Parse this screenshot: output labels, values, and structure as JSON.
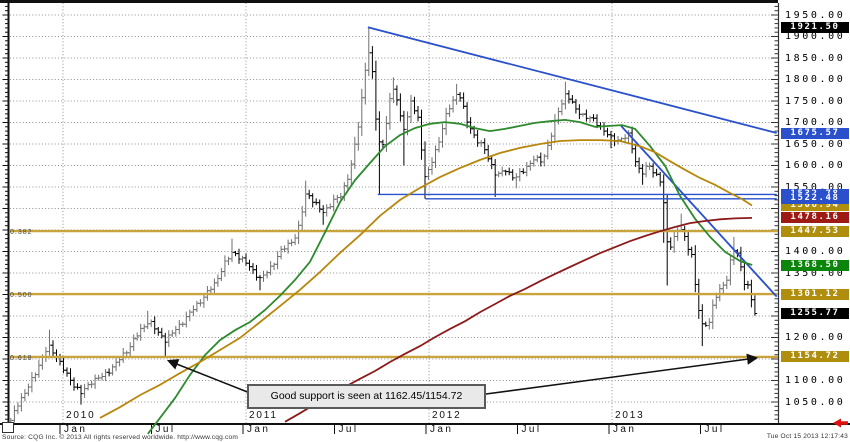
{
  "source_line": "Source: CQG Inc. © 2013 All rights reserved worldwide. http://www.cqg.com",
  "timestamp": "Tue Oct 15 2013 12:17:43",
  "annotation": {
    "text": "Good support is seen at 1162.45/1154.72"
  },
  "colors": {
    "blue": "#2a50cc",
    "gold": "#ae8e0c",
    "dark_red": "#9e1a15",
    "green": "#0c850c",
    "black": "#000000",
    "fib_line": "#c9a43c",
    "ma_green": "#2d8a2d",
    "ma_orange": "#b8860b",
    "ma_maroon": "#8c1a1a",
    "bar_up": "#6f6f6f",
    "bar_down": "#000000",
    "grid": "#909090",
    "red_arrow": "#e01010",
    "arrow_black": "#111111"
  },
  "chart_data": {
    "type": "ohlc-bar",
    "timeframe": "weekly",
    "ylim": [
      999,
      1978
    ],
    "xlim": [
      2009.7,
      2013.9
    ],
    "grid": true,
    "y_axis": {
      "ticks": [
        "1950.00",
        "1900.00",
        "1850.00",
        "1800.00",
        "1750.00",
        "1700.00",
        "1650.00",
        "1600.00",
        "1550.00",
        "1500.00",
        "1450.00",
        "1400.00",
        "1350.00",
        "1300.00",
        "1250.00",
        "1200.00",
        "1150.00",
        "1100.00",
        "1050.00"
      ]
    },
    "x_axis": {
      "years": [
        {
          "label": "2010",
          "t": 2010
        },
        {
          "label": "2011",
          "t": 2011
        },
        {
          "label": "2012",
          "t": 2012
        },
        {
          "label": "2013",
          "t": 2013
        }
      ],
      "months": [
        {
          "label": "Jan",
          "t": 2010.0
        },
        {
          "label": "Jul",
          "t": 2010.5
        },
        {
          "label": "Jan",
          "t": 2011.0
        },
        {
          "label": "Jul",
          "t": 2011.5
        },
        {
          "label": "Jan",
          "t": 2012.0
        },
        {
          "label": "Jul",
          "t": 2012.5
        },
        {
          "label": "Jan",
          "t": 2013.0
        },
        {
          "label": "Jul",
          "t": 2013.5
        }
      ]
    },
    "price_badges": [
      {
        "label": "1921.50",
        "price": 1921.5,
        "bg": "black",
        "role": "swing-high"
      },
      {
        "label": "1675.57",
        "price": 1675.57,
        "bg": "blue",
        "role": "trendline-value"
      },
      {
        "label": "1532.78",
        "price": 1532.78,
        "bg": "blue",
        "role": "support-line"
      },
      {
        "label": "1506.94",
        "price": 1506.94,
        "bg": "gold",
        "role": "ma-slow-value"
      },
      {
        "label": "1522.48",
        "price": 1522.48,
        "bg": "blue",
        "role": "support-line"
      },
      {
        "label": "1478.16",
        "price": 1478.16,
        "bg": "dark_red",
        "role": "ma-long-value"
      },
      {
        "label": "1447.53",
        "price": 1447.53,
        "bg": "gold",
        "role": "fib-0.382"
      },
      {
        "label": "1368.50",
        "price": 1368.5,
        "bg": "green",
        "role": "ma-fast-value"
      },
      {
        "label": "1301.12",
        "price": 1301.12,
        "bg": "gold",
        "role": "fib-0.500"
      },
      {
        "label": "1255.77",
        "price": 1255.77,
        "bg": "black",
        "role": "last-price"
      },
      {
        "label": "1154.72",
        "price": 1154.72,
        "bg": "gold",
        "role": "fib-0.618"
      }
    ],
    "fib_levels": [
      {
        "ratio": "0.382",
        "price": 1447.53
      },
      {
        "ratio": "0.500",
        "price": 1301.12
      },
      {
        "ratio": "0.618",
        "price": 1154.72
      }
    ],
    "support_lines": [
      {
        "price": 1532.78,
        "t_start": 2011.72,
        "t_end": 2013.9
      },
      {
        "price": 1522.48,
        "t_start": 2011.98,
        "t_end": 2013.9
      }
    ],
    "trendlines": [
      {
        "from_t": 2011.666,
        "from_p": 1921.5,
        "to_t": 2013.9,
        "to_p": 1675.57
      },
      {
        "from_t": 2013.05,
        "from_p": 1692,
        "to_t": 2013.9,
        "to_p": 1295
      }
    ],
    "moving_averages": [
      {
        "name": "ma-fast-green",
        "color_key": "ma_green",
        "points": [
          [
            2010.464,
            976
          ],
          [
            2010.53,
            1013
          ],
          [
            2010.612,
            1059
          ],
          [
            2010.694,
            1113
          ],
          [
            2010.776,
            1159
          ],
          [
            2010.858,
            1194
          ],
          [
            2010.94,
            1217
          ],
          [
            2011.022,
            1236
          ],
          [
            2011.104,
            1264
          ],
          [
            2011.186,
            1297
          ],
          [
            2011.268,
            1334
          ],
          [
            2011.35,
            1376
          ],
          [
            2011.432,
            1445
          ],
          [
            2011.514,
            1515
          ],
          [
            2011.596,
            1566
          ],
          [
            2011.678,
            1606
          ],
          [
            2011.76,
            1645
          ],
          [
            2011.842,
            1671
          ],
          [
            2011.923,
            1687
          ],
          [
            2012.005,
            1697
          ],
          [
            2012.087,
            1701
          ],
          [
            2012.169,
            1697
          ],
          [
            2012.251,
            1687
          ],
          [
            2012.333,
            1680
          ],
          [
            2012.415,
            1685
          ],
          [
            2012.497,
            1692
          ],
          [
            2012.579,
            1699
          ],
          [
            2012.661,
            1703
          ],
          [
            2012.743,
            1706
          ],
          [
            2012.825,
            1701
          ],
          [
            2012.907,
            1690
          ],
          [
            2012.989,
            1692
          ],
          [
            2013.055,
            1694
          ],
          [
            2013.126,
            1685
          ],
          [
            2013.208,
            1645
          ],
          [
            2013.29,
            1599
          ],
          [
            2013.372,
            1529
          ],
          [
            2013.454,
            1476
          ],
          [
            2013.536,
            1434
          ],
          [
            2013.618,
            1399
          ],
          [
            2013.7,
            1378
          ],
          [
            2013.766,
            1368.5
          ]
        ]
      },
      {
        "name": "ma-slow-orange",
        "color_key": "ma_orange",
        "points": [
          [
            2010.202,
            1013
          ],
          [
            2010.311,
            1038
          ],
          [
            2010.421,
            1066
          ],
          [
            2010.53,
            1090
          ],
          [
            2010.639,
            1117
          ],
          [
            2010.749,
            1143
          ],
          [
            2010.858,
            1171
          ],
          [
            2010.967,
            1199
          ],
          [
            2011.077,
            1236
          ],
          [
            2011.186,
            1273
          ],
          [
            2011.295,
            1311
          ],
          [
            2011.404,
            1352
          ],
          [
            2011.514,
            1397
          ],
          [
            2011.623,
            1438
          ],
          [
            2011.732,
            1483
          ],
          [
            2011.842,
            1520
          ],
          [
            2011.951,
            1548
          ],
          [
            2012.06,
            1573
          ],
          [
            2012.169,
            1594
          ],
          [
            2012.279,
            1613
          ],
          [
            2012.388,
            1629
          ],
          [
            2012.497,
            1641
          ],
          [
            2012.607,
            1650
          ],
          [
            2012.716,
            1657
          ],
          [
            2012.825,
            1659
          ],
          [
            2012.934,
            1659
          ],
          [
            2013.044,
            1657
          ],
          [
            2013.153,
            1645
          ],
          [
            2013.235,
            1631
          ],
          [
            2013.317,
            1610
          ],
          [
            2013.399,
            1590
          ],
          [
            2013.481,
            1571
          ],
          [
            2013.563,
            1555
          ],
          [
            2013.645,
            1536
          ],
          [
            2013.71,
            1522
          ],
          [
            2013.765,
            1506.94
          ]
        ]
      },
      {
        "name": "ma-long-maroon",
        "color_key": "ma_maroon",
        "points": [
          [
            2011.213,
            1004
          ],
          [
            2011.295,
            1024
          ],
          [
            2011.377,
            1045
          ],
          [
            2011.459,
            1064
          ],
          [
            2011.541,
            1085
          ],
          [
            2011.623,
            1104
          ],
          [
            2011.705,
            1122
          ],
          [
            2011.787,
            1143
          ],
          [
            2011.869,
            1162
          ],
          [
            2011.951,
            1180
          ],
          [
            2012.033,
            1201
          ],
          [
            2012.115,
            1220
          ],
          [
            2012.197,
            1238
          ],
          [
            2012.279,
            1259
          ],
          [
            2012.361,
            1278
          ],
          [
            2012.443,
            1297
          ],
          [
            2012.525,
            1313
          ],
          [
            2012.607,
            1331
          ],
          [
            2012.689,
            1348
          ],
          [
            2012.77,
            1364
          ],
          [
            2012.852,
            1380
          ],
          [
            2012.934,
            1396
          ],
          [
            2013.016,
            1410
          ],
          [
            2013.098,
            1424
          ],
          [
            2013.18,
            1436
          ],
          [
            2013.262,
            1447
          ],
          [
            2013.344,
            1457
          ],
          [
            2013.426,
            1466
          ],
          [
            2013.508,
            1471
          ],
          [
            2013.59,
            1475
          ],
          [
            2013.672,
            1477
          ],
          [
            2013.765,
            1478.16
          ]
        ]
      }
    ],
    "bars": {
      "start_t": 2009.715,
      "weeks_per_year": 52.14,
      "last_close": 1255.77,
      "anchors": [
        [
          2009.715,
          1005
        ],
        [
          2009.75,
          1045
        ],
        [
          2009.8,
          1075
        ],
        [
          2009.85,
          1120
        ],
        [
          2009.92,
          1180,
          1218,
          null
        ],
        [
          2009.96,
          1160
        ],
        [
          2010.01,
          1120
        ],
        [
          2010.06,
          1090
        ],
        [
          2010.1,
          1070,
          null,
          1044
        ],
        [
          2010.16,
          1100
        ],
        [
          2010.22,
          1110
        ],
        [
          2010.28,
          1135
        ],
        [
          2010.35,
          1170
        ],
        [
          2010.42,
          1215
        ],
        [
          2010.47,
          1240,
          1262,
          null
        ],
        [
          2010.52,
          1210
        ],
        [
          2010.56,
          1195,
          null,
          1157
        ],
        [
          2010.61,
          1215
        ],
        [
          2010.66,
          1240
        ],
        [
          2010.72,
          1270
        ],
        [
          2010.78,
          1300
        ],
        [
          2010.83,
          1325
        ],
        [
          2010.88,
          1370
        ],
        [
          2010.93,
          1400,
          1430,
          null
        ],
        [
          2010.97,
          1385
        ],
        [
          2011.03,
          1360
        ],
        [
          2011.08,
          1335,
          null,
          1310
        ],
        [
          2011.13,
          1360
        ],
        [
          2011.19,
          1400
        ],
        [
          2011.24,
          1420
        ],
        [
          2011.28,
          1440
        ],
        [
          2011.33,
          1540,
          1565,
          null
        ],
        [
          2011.38,
          1510
        ],
        [
          2011.42,
          1490,
          null,
          1462
        ],
        [
          2011.47,
          1515
        ],
        [
          2011.52,
          1530
        ],
        [
          2011.57,
          1590
        ],
        [
          2011.61,
          1680
        ],
        [
          2011.645,
          1795
        ],
        [
          2011.665,
          1880,
          1921.5,
          null
        ],
        [
          2011.69,
          1815
        ],
        [
          2011.72,
          1655,
          null,
          1532.78
        ],
        [
          2011.75,
          1650
        ],
        [
          2011.78,
          1740
        ],
        [
          2011.81,
          1785,
          1805,
          null
        ],
        [
          2011.84,
          1720
        ],
        [
          2011.87,
          1680,
          null,
          1600
        ],
        [
          2011.9,
          1750
        ],
        [
          2011.94,
          1710
        ],
        [
          2011.98,
          1565,
          null,
          1522.48
        ],
        [
          2012.02,
          1615
        ],
        [
          2012.06,
          1665
        ],
        [
          2012.1,
          1725
        ],
        [
          2012.16,
          1775,
          1790,
          null
        ],
        [
          2012.21,
          1700
        ],
        [
          2012.26,
          1660
        ],
        [
          2012.3,
          1640
        ],
        [
          2012.37,
          1575,
          null,
          1527
        ],
        [
          2012.42,
          1590
        ],
        [
          2012.47,
          1570,
          null,
          1547
        ],
        [
          2012.52,
          1590
        ],
        [
          2012.57,
          1615
        ],
        [
          2012.62,
          1610
        ],
        [
          2012.66,
          1660
        ],
        [
          2012.71,
          1730
        ],
        [
          2012.75,
          1770,
          1795,
          null
        ],
        [
          2012.8,
          1730
        ],
        [
          2012.85,
          1715
        ],
        [
          2012.9,
          1705
        ],
        [
          2012.95,
          1685
        ],
        [
          2013.0,
          1660,
          null,
          1640
        ],
        [
          2013.04,
          1660
        ],
        [
          2013.09,
          1670
        ],
        [
          2013.13,
          1610
        ],
        [
          2013.16,
          1580,
          null,
          1555
        ],
        [
          2013.2,
          1600
        ],
        [
          2013.24,
          1580
        ],
        [
          2013.27,
          1560
        ],
        [
          2013.29,
          1480,
          null,
          1420
        ],
        [
          2013.305,
          1400,
          null,
          1321
        ],
        [
          2013.33,
          1425
        ],
        [
          2013.37,
          1460,
          1488,
          null
        ],
        [
          2013.41,
          1415
        ],
        [
          2013.44,
          1390
        ],
        [
          2013.46,
          1300
        ],
        [
          2013.49,
          1225,
          null,
          1180
        ],
        [
          2013.53,
          1235
        ],
        [
          2013.56,
          1290
        ],
        [
          2013.6,
          1315
        ],
        [
          2013.63,
          1340
        ],
        [
          2013.66,
          1408,
          1434,
          null
        ],
        [
          2013.69,
          1390
        ],
        [
          2013.72,
          1330
        ],
        [
          2013.74,
          1325
        ],
        [
          2013.76,
          1290,
          null,
          1270
        ],
        [
          2013.775,
          1282
        ],
        [
          2013.79,
          1255.77,
          null,
          1251
        ]
      ]
    },
    "annotations": [
      {
        "text": "Good support is seen at 1162.45/1154.72",
        "arrow_targets": [
          "0.618 retracement crossing in mid-2010",
          "1154.72 level at right edge"
        ]
      }
    ]
  }
}
